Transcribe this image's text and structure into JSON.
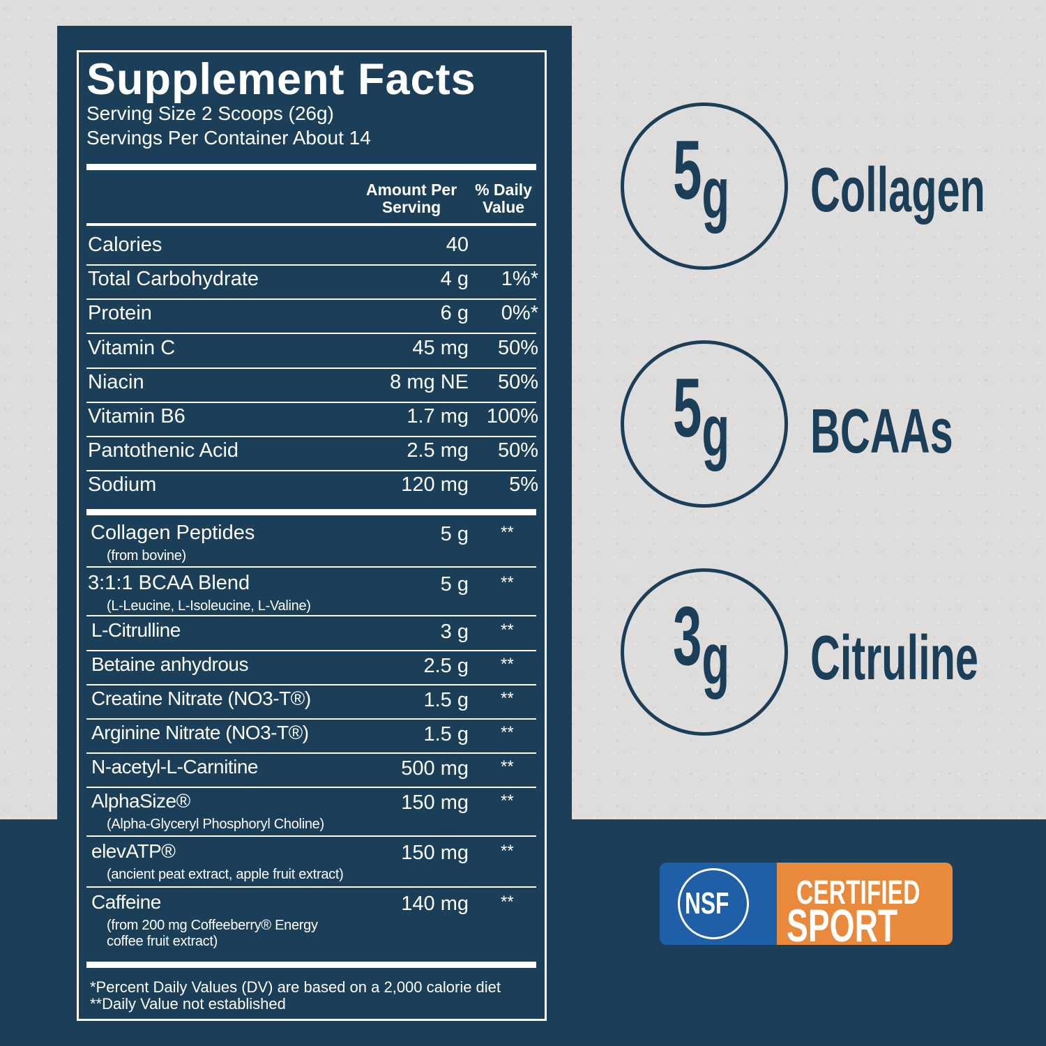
{
  "facts": {
    "title": "Supplement Facts",
    "serving_size": "Serving Size 2 Scoops (26g)",
    "servings_per_container": "Servings Per Container About 14",
    "header_amount_line1": "Amount Per",
    "header_amount_line2": "Serving",
    "header_dv_line1": "% Daily",
    "header_dv_line2": "Value",
    "nutrients": [
      {
        "name": "Calories",
        "amount": "40",
        "dv": ""
      },
      {
        "name": "Total Carbohydrate",
        "amount": "4 g",
        "dv": "1%*"
      },
      {
        "name": "Protein",
        "amount": "6 g",
        "dv": "0%*"
      },
      {
        "name": "Vitamin C",
        "amount": "45 mg",
        "dv": "50%"
      },
      {
        "name": "Niacin",
        "amount": "8 mg NE",
        "dv": "50%"
      },
      {
        "name": "Vitamin B6",
        "amount": "1.7 mg",
        "dv": "100%"
      },
      {
        "name": "Pantothenic Acid",
        "amount": "2.5 mg",
        "dv": "50%"
      },
      {
        "name": "Sodium",
        "amount": "120 mg",
        "dv": "5%"
      }
    ],
    "ingredients": [
      {
        "name": "Collagen Peptides",
        "sub": "(from bovine)",
        "sub2": "",
        "amount": "5 g",
        "dv": "**"
      },
      {
        "name": "3:1:1 BCAA Blend",
        "sub": "(L-Leucine, L-Isoleucine, L-Valine)",
        "sub2": "",
        "amount": "5 g",
        "dv": "**"
      },
      {
        "name": "L-Citrulline",
        "sub": "",
        "sub2": "",
        "amount": "3 g",
        "dv": "**"
      },
      {
        "name": "Betaine anhydrous",
        "sub": "",
        "sub2": "",
        "amount": "2.5 g",
        "dv": "**"
      },
      {
        "name": "Creatine Nitrate (NO3-T®)",
        "sub": "",
        "sub2": "",
        "amount": "1.5 g",
        "dv": "**"
      },
      {
        "name": "Arginine Nitrate (NO3-T®)",
        "sub": "",
        "sub2": "",
        "amount": "1.5 g",
        "dv": "**"
      },
      {
        "name": "N-acetyl-L-Carnitine",
        "sub": "",
        "sub2": "",
        "amount": "500 mg",
        "dv": "**"
      },
      {
        "name": "AlphaSize®",
        "sub": "(Alpha-Glyceryl Phosphoryl Choline)",
        "sub2": "",
        "amount": "150 mg",
        "dv": "**"
      },
      {
        "name": "elevATP®",
        "sub": "(ancient peat extract, apple fruit extract)",
        "sub2": "",
        "amount": "150 mg",
        "dv": "**"
      },
      {
        "name": "Caffeine",
        "sub": "(from 200 mg Coffeeberry® Energy",
        "sub2": " coffee fruit extract)",
        "amount": "140 mg",
        "dv": "**"
      }
    ],
    "footnote1": "*Percent Daily Values (DV) are based on a 2,000 calorie diet",
    "footnote2": "**Daily Value not established"
  },
  "highlights": [
    {
      "number": "5",
      "unit": "g",
      "label": "Collagen"
    },
    {
      "number": "5",
      "unit": "g",
      "label": "BCAAs"
    },
    {
      "number": "3",
      "unit": "g",
      "label": "Citruline"
    }
  ],
  "badge": {
    "logo_text": "NSF",
    "line1": "CERTIFIED",
    "line2": "SPORT",
    "blue": "#1f5fa8",
    "orange": "#e8893b"
  },
  "colors": {
    "navy": "#1b3f58",
    "concrete": "#dedddb"
  }
}
